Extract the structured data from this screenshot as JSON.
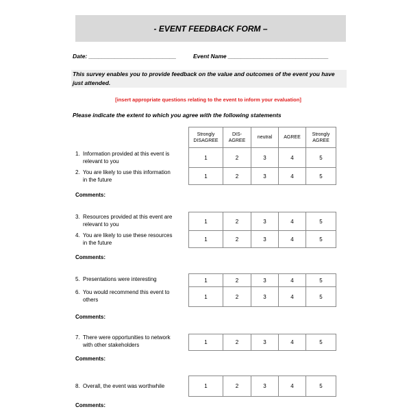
{
  "title": "- EVENT FEEDBACK FORM –",
  "date_label": "Date: ___________________________",
  "event_label": "Event Name _______________________________",
  "intro": "This survey enables you to provide feedback on the value and outcomes of the event you have just attended.",
  "instruction_note": "[insert appropriate questions relating to the event to inform your evaluation]",
  "prompt": "Please indicate the extent to which you agree with the following statements",
  "scale_headers": [
    "Strongly DISAGREE",
    "DIS- AGREE",
    "neutral",
    "AGREE",
    "Strongly AGREE"
  ],
  "scale_values": [
    "1",
    "2",
    "3",
    "4",
    "5"
  ],
  "comments_label": "Comments:",
  "questions": [
    {
      "num": "1.",
      "line1": "Information provided at this event is",
      "line2": "relevant to you"
    },
    {
      "num": "2.",
      "line1": "You are likely to use this information",
      "line2": "in the future"
    },
    {
      "num": "3.",
      "line1": "Resources provided at this event are",
      "line2": "relevant to you"
    },
    {
      "num": "4.",
      "line1": "You are likely to use these resources",
      "line2": "in the future"
    },
    {
      "num": "5.",
      "line1": "Presentations were interesting",
      "line2": ""
    },
    {
      "num": "6.",
      "line1": "You would recommend this event to",
      "line2": "others"
    },
    {
      "num": "7.",
      "line1": "There were opportunities to network",
      "line2": "with other stakeholders"
    },
    {
      "num": "8.",
      "line1": "Overall, the event was worthwhile",
      "line2": ""
    }
  ]
}
